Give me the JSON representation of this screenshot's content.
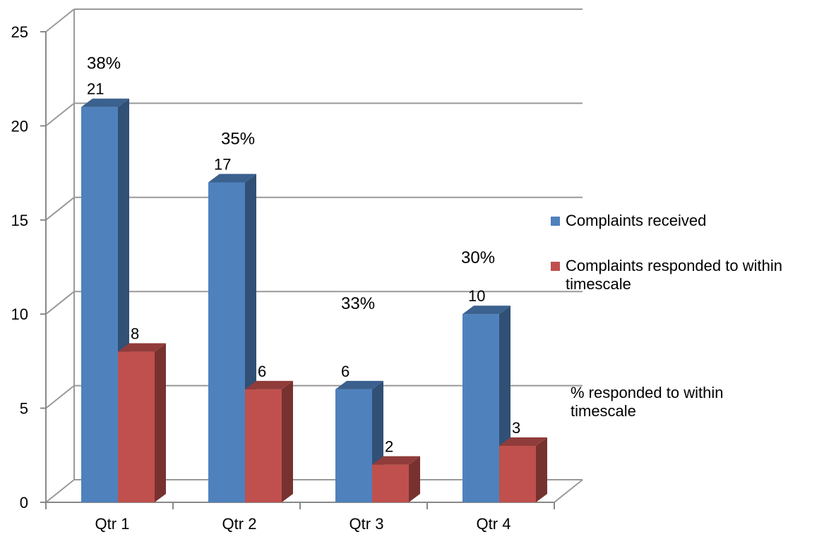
{
  "chart_data": {
    "type": "bar",
    "categories": [
      "Qtr 1",
      "Qtr 2",
      "Qtr 3",
      "Qtr 4"
    ],
    "series": [
      {
        "name": "Complaints received",
        "values": [
          21,
          17,
          6,
          10
        ],
        "color": "#4F81BD"
      },
      {
        "name": "Complaints responded to within timescale",
        "values": [
          8,
          6,
          2,
          3
        ],
        "color": "#C0504D"
      }
    ],
    "percent_series_name": "% responded to within timescale",
    "percent_labels": [
      "38%",
      "35%",
      "33%",
      "30%"
    ],
    "yticks": [
      "0",
      "5",
      "10",
      "15",
      "20",
      "25"
    ],
    "ylim": [
      0,
      25
    ],
    "grid": true,
    "legend_position": "right"
  }
}
